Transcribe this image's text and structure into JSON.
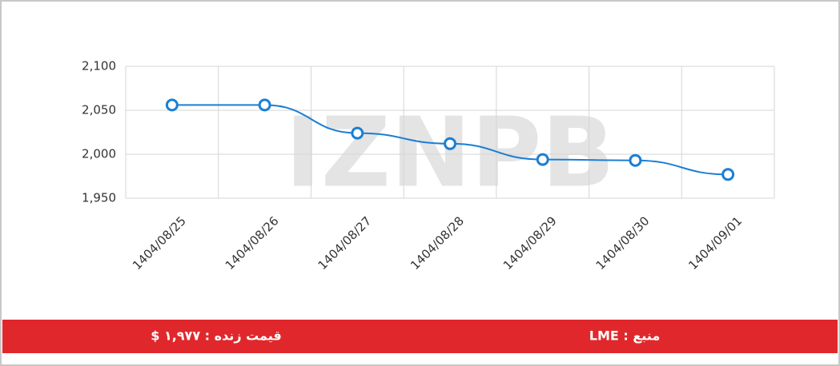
{
  "chart_data": {
    "type": "line",
    "watermark": "IZNPB",
    "categories": [
      "1404/08/25",
      "1404/08/26",
      "1404/08/27",
      "1404/08/28",
      "1404/08/29",
      "1404/08/30",
      "1404/09/01"
    ],
    "series": [
      {
        "color": "#1a7fd4",
        "values": [
          2056,
          2056,
          2024,
          2012,
          1994,
          1993,
          1977
        ]
      }
    ],
    "ylim": [
      1950,
      2100
    ],
    "yticks": [
      {
        "value": 1950,
        "label": "1,950"
      },
      {
        "value": 2000,
        "label": "2,000"
      },
      {
        "value": 2050,
        "label": "2,050"
      },
      {
        "value": 2100,
        "label": "2,100"
      }
    ],
    "grid": true
  },
  "footer": {
    "price": "قیمت زنده : ۱,۹۷۷ $",
    "source": "منبع : LME"
  }
}
